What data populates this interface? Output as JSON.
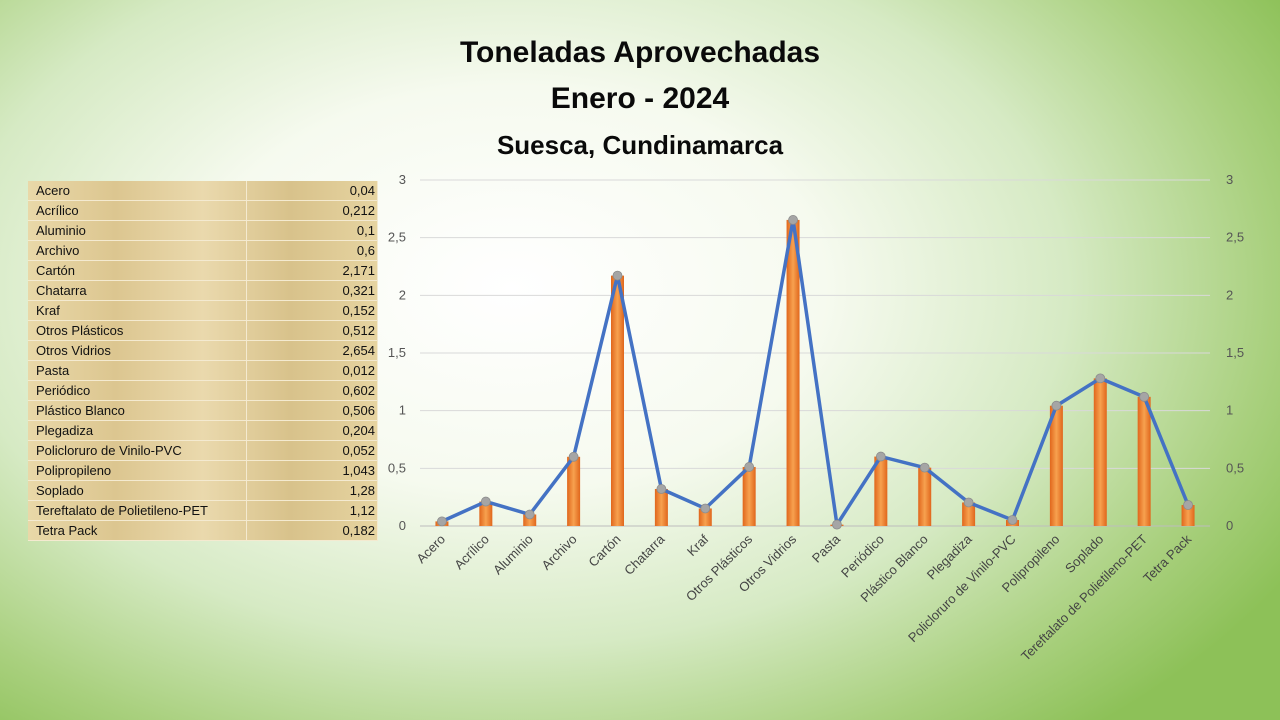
{
  "title": {
    "line1": "Toneladas Aprovechadas",
    "line2": "Enero - 2024",
    "subtitle": "Suesca, Cundinamarca"
  },
  "table": {
    "rows": [
      {
        "label": "Acero",
        "value": "0,04"
      },
      {
        "label": "Acrílico",
        "value": "0,212"
      },
      {
        "label": "Aluminio",
        "value": "0,1"
      },
      {
        "label": "Archivo",
        "value": "0,6"
      },
      {
        "label": "Cartón",
        "value": "2,171"
      },
      {
        "label": "Chatarra",
        "value": "0,321"
      },
      {
        "label": "Kraf",
        "value": "0,152"
      },
      {
        "label": "Otros Plásticos",
        "value": "0,512"
      },
      {
        "label": "Otros Vidrios",
        "value": "2,654"
      },
      {
        "label": "Pasta",
        "value": "0,012"
      },
      {
        "label": "Periódico",
        "value": "0,602"
      },
      {
        "label": "Plástico Blanco",
        "value": "0,506"
      },
      {
        "label": "Plegadiza",
        "value": "0,204"
      },
      {
        "label": "Policloruro de Vinilo-PVC",
        "value": "0,052"
      },
      {
        "label": "Polipropileno",
        "value": "1,043"
      },
      {
        "label": "Soplado",
        "value": "1,28"
      },
      {
        "label": "Tereftalato de Polietileno-PET",
        "value": "1,12"
      },
      {
        "label": "Tetra Pack",
        "value": "0,182"
      }
    ]
  },
  "chart_data": {
    "type": "bar",
    "combo": "bar+line",
    "title": "Toneladas Aprovechadas",
    "subtitle": "Enero - 2024 · Suesca, Cundinamarca",
    "categories": [
      "Acero",
      "Acrílico",
      "Aluminio",
      "Archivo",
      "Cartón",
      "Chatarra",
      "Kraf",
      "Otros Plásticos",
      "Otros Vidrios",
      "Pasta",
      "Periódico",
      "Plástico Blanco",
      "Plegadiza",
      "Policloruro de Vinilo-PVC",
      "Polipropileno",
      "Soplado",
      "Tereftalato de Polietileno-PET",
      "Tetra Pack"
    ],
    "series": [
      {
        "type": "bar",
        "values": [
          0.04,
          0.212,
          0.1,
          0.6,
          2.171,
          0.321,
          0.152,
          0.512,
          2.654,
          0.012,
          0.602,
          0.506,
          0.204,
          0.052,
          1.043,
          1.28,
          1.12,
          0.182
        ],
        "color": "#ed7d31"
      },
      {
        "type": "line",
        "axis": "secondary",
        "values": [
          0.04,
          0.212,
          0.1,
          0.6,
          2.171,
          0.321,
          0.152,
          0.512,
          2.654,
          0.012,
          0.602,
          0.506,
          0.204,
          0.052,
          1.043,
          1.28,
          1.12,
          0.182
        ],
        "color": "#4472c4",
        "marker_color": "#a5a5a5"
      }
    ],
    "ylim": [
      0,
      3
    ],
    "y2lim": [
      0,
      3
    ],
    "yticks": [
      "0",
      "0,5",
      "1",
      "1,5",
      "2",
      "2,5",
      "3"
    ],
    "xlabel": "",
    "ylabel": "",
    "grid": true,
    "legend": "none"
  }
}
